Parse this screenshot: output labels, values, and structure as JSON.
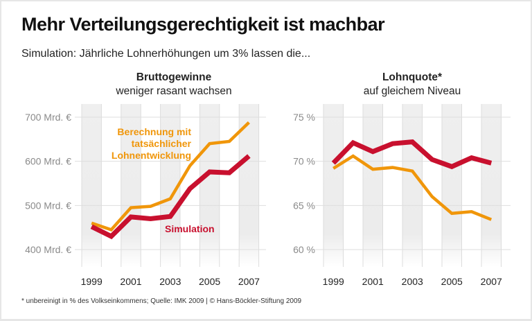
{
  "title": "Mehr Verteilungsgerechtigkeit ist machbar",
  "subtitle": "Simulation: Jährliche Lohnerhöhungen um 3% lassen die...",
  "footnote": "* unbereinigt in % des Volkseinkommens; Quelle: IMK 2009 | © Hans-Böckler-Stiftung 2009",
  "colors": {
    "simulation": "#c8102e",
    "actual": "#f0960a",
    "axis_text": "#8a8a8a",
    "column_shade": "#ececec"
  },
  "chart_data": [
    {
      "type": "line",
      "title": "Bruttogewinne",
      "subtitle": "weniger rasant wachsen",
      "x": [
        1999,
        2000,
        2001,
        2002,
        2003,
        2004,
        2005,
        2006,
        2007
      ],
      "x_tick_labels": [
        "1999",
        "2001",
        "2003",
        "2005",
        "2007"
      ],
      "y_ticks": [
        400,
        500,
        600,
        700
      ],
      "y_tick_labels": [
        "400 Mrd. €",
        "500 Mrd. €",
        "600 Mrd. €",
        "700 Mrd. €"
      ],
      "ylim": [
        365,
        745
      ],
      "grid": true,
      "series": [
        {
          "name": "Berechnung mit tatsächlicher Lohnentwicklung",
          "label_lines": [
            "Berechnung mit",
            "tatsächlicher",
            "Lohnentwicklung"
          ],
          "color": "#f0960a",
          "values": [
            460,
            445,
            495,
            498,
            515,
            590,
            640,
            645,
            688
          ]
        },
        {
          "name": "Simulation",
          "label_lines": [
            "Simulation"
          ],
          "color": "#c8102e",
          "values": [
            452,
            430,
            474,
            470,
            475,
            538,
            576,
            574,
            612
          ]
        }
      ]
    },
    {
      "type": "line",
      "title": "Lohnquote*",
      "subtitle": "auf gleichem Niveau",
      "x": [
        1999,
        2000,
        2001,
        2002,
        2003,
        2004,
        2005,
        2006,
        2007
      ],
      "x_tick_labels": [
        "1999",
        "2001",
        "2003",
        "2005",
        "2007"
      ],
      "y_ticks": [
        60,
        65,
        70,
        75
      ],
      "y_tick_labels": [
        "60 %",
        "65 %",
        "70 %",
        "75 %"
      ],
      "ylim": [
        58.25,
        77.25
      ],
      "grid": true,
      "series": [
        {
          "color": "#c8102e",
          "values": [
            69.8,
            72.1,
            71.1,
            72.0,
            72.2,
            70.2,
            69.4,
            70.4,
            69.8
          ]
        },
        {
          "color": "#f0960a",
          "values": [
            69.2,
            70.6,
            69.1,
            69.3,
            68.9,
            66.0,
            64.1,
            64.3,
            63.4
          ]
        }
      ]
    }
  ]
}
